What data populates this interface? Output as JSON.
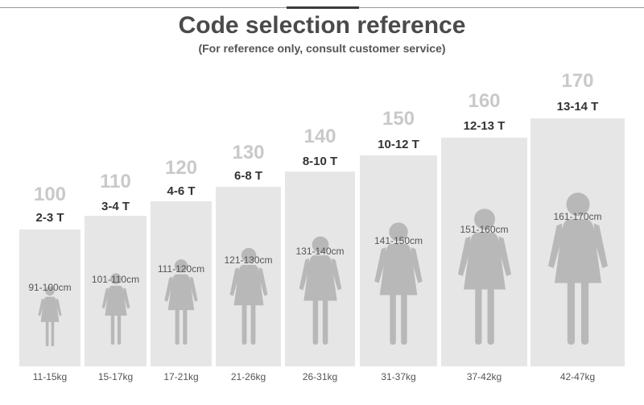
{
  "title": "Code selection reference",
  "subtitle": "(For reference only, consult customer service)",
  "sizes": [
    {
      "height": "100",
      "age": "2-3 T",
      "range": "91-100cm",
      "weight": "11-15kg"
    },
    {
      "height": "110",
      "age": "3-4 T",
      "range": "101-110cm",
      "weight": "15-17kg"
    },
    {
      "height": "120",
      "age": "4-6 T",
      "range": "111-120cm",
      "weight": "17-21kg"
    },
    {
      "height": "130",
      "age": "6-8 T",
      "range": "121-130cm",
      "weight": "21-26kg"
    },
    {
      "height": "140",
      "age": "8-10 T",
      "range": "131-140cm",
      "weight": "26-31kg"
    },
    {
      "height": "150",
      "age": "10-12 T",
      "range": "141-150cm",
      "weight": "31-37kg"
    },
    {
      "height": "160",
      "age": "12-13 T",
      "range": "151-160cm",
      "weight": "37-42kg"
    },
    {
      "height": "170",
      "age": "13-14 T",
      "range": "161-170cm",
      "weight": "42-47kg"
    }
  ],
  "colors": {
    "box": "#e6e6e6",
    "figure": "#b8b8b8",
    "height_number": "#c9c9c9"
  }
}
